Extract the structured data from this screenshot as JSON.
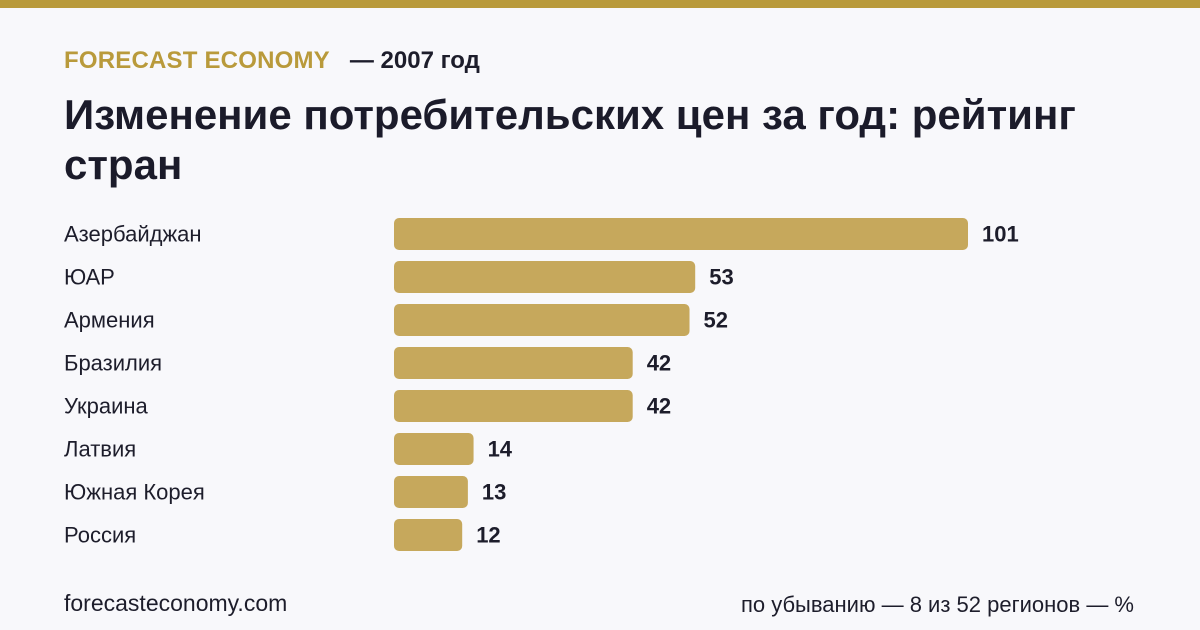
{
  "header": {
    "brand": "FORECAST ECONOMY",
    "subtitle": "— 2007 год"
  },
  "title": "Изменение потребительских цен за год: рейтинг стран",
  "footer": {
    "site": "forecasteconomy.com",
    "note": "по убыванию — 8 из 52 регионов — %"
  },
  "colors": {
    "accent": "#b99a3b",
    "bar": "#c6a85c",
    "text": "#1d1d2b",
    "background": "#f8f8fb"
  },
  "chart_data": {
    "type": "bar",
    "orientation": "horizontal",
    "title": "Изменение потребительских цен за год: рейтинг стран",
    "xlabel": "",
    "ylabel": "",
    "categories": [
      "Азербайджан",
      "ЮАР",
      "Армения",
      "Бразилия",
      "Украина",
      "Латвия",
      "Южная Корея",
      "Россия"
    ],
    "values": [
      101,
      53,
      52,
      42,
      42,
      14,
      13,
      12
    ],
    "value_labels": [
      "101",
      "53",
      "52",
      "42",
      "42",
      "14",
      "13",
      "12"
    ],
    "xlim": [
      0,
      101
    ],
    "grid": false,
    "legend": "none"
  }
}
